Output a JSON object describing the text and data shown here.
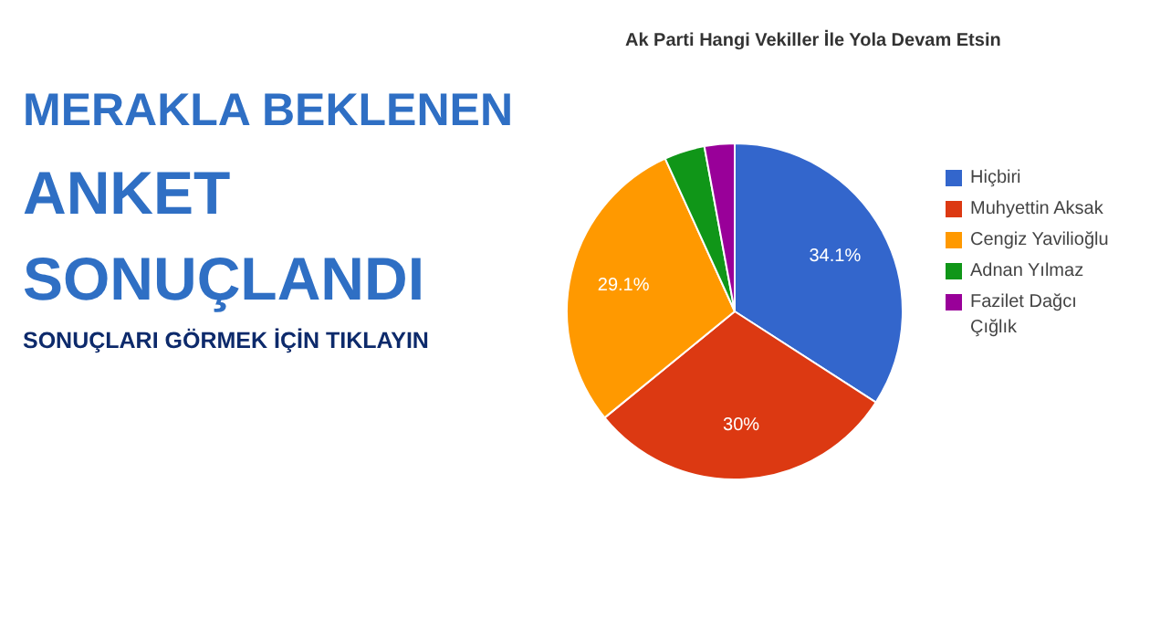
{
  "chart_data": {
    "type": "pie",
    "title": "Ak Parti Hangi  Vekiller İle Yola Devam Etsin",
    "categories": [
      "Hiçbiri",
      "Muhyettin Aksak",
      "Cengiz Yavilioğlu",
      "Adnan Yılmaz",
      "Fazilet Dağcı Çığlık"
    ],
    "values": [
      34.1,
      30,
      29.1,
      3.9,
      2.9
    ],
    "colors": [
      "#3366cc",
      "#dc3912",
      "#ff9900",
      "#109618",
      "#990099"
    ],
    "value_labels": [
      "34.1%",
      "30%",
      "29.1%",
      null,
      null
    ],
    "legend": "right",
    "annotations": [
      "MERAKLA BEKLENEN",
      "ANKET",
      "SONUÇLANDI",
      "SONUÇLARI GÖRMEK İÇİN TIKLAYIN"
    ]
  }
}
